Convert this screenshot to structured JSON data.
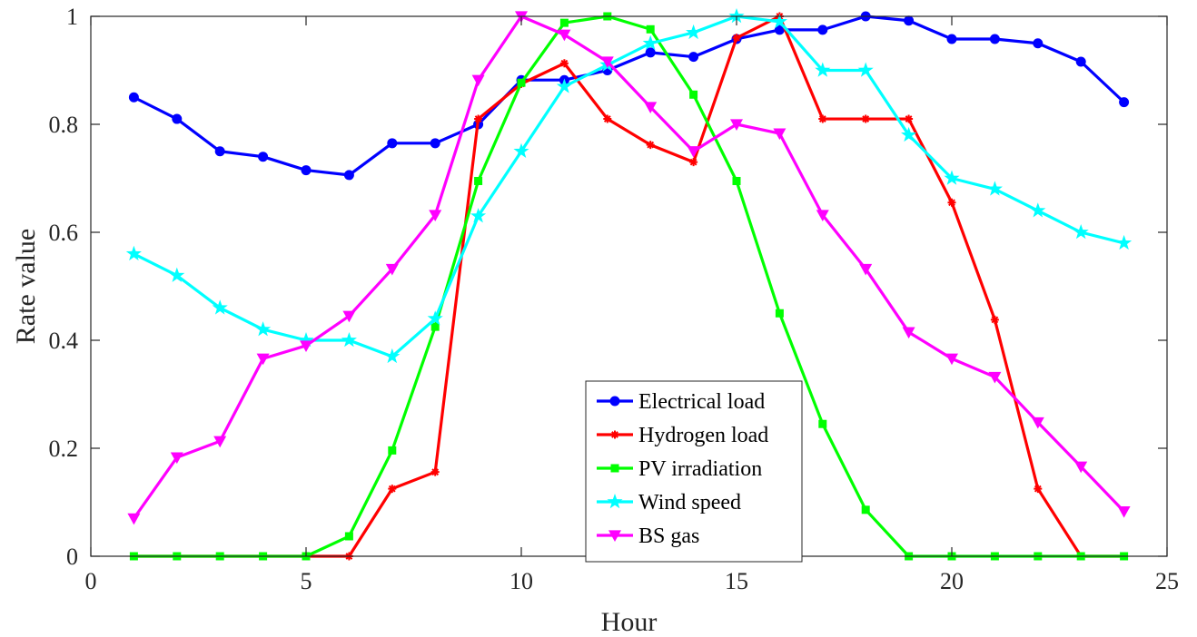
{
  "chart_data": {
    "type": "line",
    "xlabel": "Hour",
    "ylabel": "Rate value",
    "xlim": [
      0,
      25
    ],
    "ylim": [
      0,
      1
    ],
    "xticks": [
      0,
      5,
      10,
      15,
      20,
      25
    ],
    "yticks": [
      0,
      0.2,
      0.4,
      0.6,
      0.8,
      1
    ],
    "xtick_labels": [
      "0",
      "5",
      "10",
      "15",
      "20",
      "25"
    ],
    "ytick_labels": [
      "0",
      "0.2",
      "0.4",
      "0.6",
      "0.8",
      "1"
    ],
    "grid": false,
    "legend_position": "bottom-center",
    "x": [
      1,
      2,
      3,
      4,
      5,
      6,
      7,
      8,
      9,
      10,
      11,
      12,
      13,
      14,
      15,
      16,
      17,
      18,
      19,
      20,
      21,
      22,
      23,
      24
    ],
    "series": [
      {
        "name": "Electrical load",
        "color": "#0000ff",
        "marker": "circle",
        "values": [
          0.85,
          0.81,
          0.75,
          0.74,
          0.715,
          0.706,
          0.765,
          0.765,
          0.8,
          0.882,
          0.882,
          0.9,
          0.933,
          0.925,
          0.958,
          0.975,
          0.975,
          1.0,
          0.992,
          0.958,
          0.958,
          0.95,
          0.916,
          0.841
        ]
      },
      {
        "name": "Hydrogen load",
        "color": "#ff0000",
        "marker": "asterisk",
        "values": [
          0,
          0,
          0,
          0,
          0,
          0,
          0.125,
          0.156,
          0.81,
          0.875,
          0.913,
          0.81,
          0.762,
          0.73,
          0.96,
          1.0,
          0.81,
          0.81,
          0.81,
          0.655,
          0.438,
          0.125,
          0,
          0
        ]
      },
      {
        "name": "PV irradiation",
        "color": "#00ff00",
        "marker": "square",
        "values": [
          0,
          0,
          0,
          0,
          0,
          0.037,
          0.196,
          0.425,
          0.695,
          0.877,
          0.988,
          1.0,
          0.976,
          0.855,
          0.695,
          0.45,
          0.245,
          0.086,
          0,
          0,
          0,
          0,
          0,
          0
        ]
      },
      {
        "name": "Wind speed",
        "color": "#00ffff",
        "marker": "star",
        "values": [
          0.56,
          0.52,
          0.46,
          0.42,
          0.4,
          0.4,
          0.37,
          0.44,
          0.63,
          0.75,
          0.87,
          0.91,
          0.95,
          0.97,
          1.0,
          0.99,
          0.9,
          0.9,
          0.78,
          0.7,
          0.68,
          0.64,
          0.6,
          0.58
        ]
      },
      {
        "name": "BS gas",
        "color": "#ff00ff",
        "marker": "triangle-down",
        "values": [
          0.07,
          0.183,
          0.213,
          0.366,
          0.39,
          0.445,
          0.532,
          0.632,
          0.882,
          1.0,
          0.966,
          0.916,
          0.832,
          0.75,
          0.8,
          0.783,
          0.632,
          0.532,
          0.415,
          0.366,
          0.332,
          0.248,
          0.166,
          0.083
        ]
      }
    ]
  }
}
